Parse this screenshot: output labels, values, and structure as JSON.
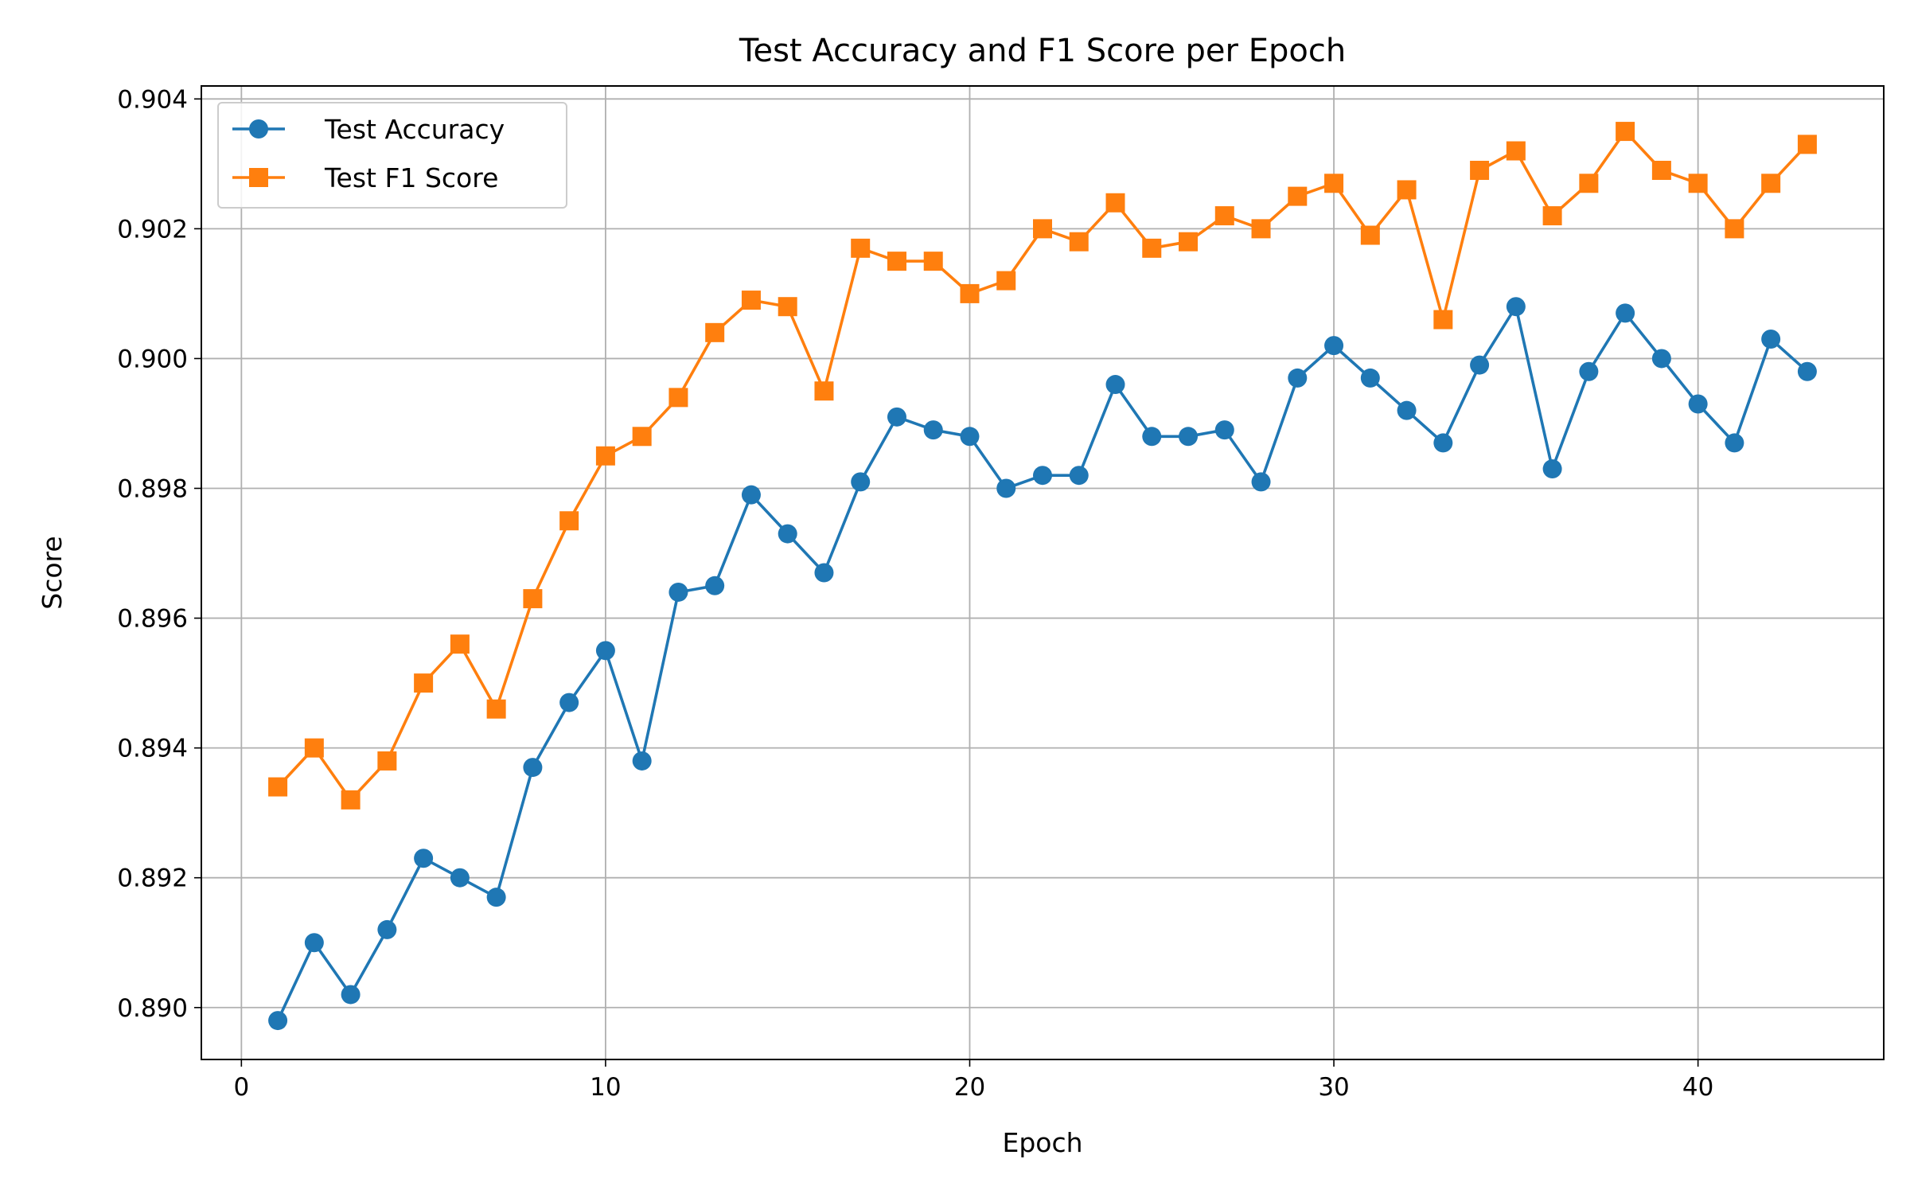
{
  "chart_data": {
    "type": "line",
    "title": "Test Accuracy and F1 Score per Epoch",
    "xlabel": "Epoch",
    "ylabel": "Score",
    "xlim": [
      -1.1,
      45.1
    ],
    "ylim": [
      0.8892,
      0.9042
    ],
    "xticks": [
      0,
      10,
      20,
      30,
      40
    ],
    "xtick_labels": [
      "0",
      "10",
      "20",
      "30",
      "40"
    ],
    "yticks": [
      0.89,
      0.892,
      0.894,
      0.896,
      0.898,
      0.9,
      0.902,
      0.904
    ],
    "ytick_labels": [
      "0.890",
      "0.892",
      "0.894",
      "0.896",
      "0.898",
      "0.900",
      "0.902",
      "0.904"
    ],
    "grid": true,
    "legend": "upper left",
    "x": [
      1,
      2,
      3,
      4,
      5,
      6,
      7,
      8,
      9,
      10,
      11,
      12,
      13,
      14,
      15,
      16,
      17,
      18,
      19,
      20,
      21,
      22,
      23,
      24,
      25,
      26,
      27,
      28,
      29,
      30,
      31,
      32,
      33,
      34,
      35,
      36,
      37,
      38,
      39,
      40,
      41,
      42,
      43
    ],
    "series": [
      {
        "name": "Test Accuracy",
        "color": "#1f77b4",
        "marker": "circle",
        "values": [
          0.8898,
          0.891,
          0.8902,
          0.8912,
          0.8923,
          0.892,
          0.8917,
          0.8937,
          0.8947,
          0.8955,
          0.8938,
          0.8964,
          0.8965,
          0.8979,
          0.8973,
          0.8967,
          0.8981,
          0.8991,
          0.8989,
          0.8988,
          0.898,
          0.8982,
          0.8982,
          0.8996,
          0.8988,
          0.8988,
          0.8989,
          0.8981,
          0.8997,
          0.9002,
          0.8997,
          0.8992,
          0.8987,
          0.8999,
          0.9008,
          0.8983,
          0.8998,
          0.9007,
          0.9,
          0.8993,
          0.8987,
          0.9003,
          0.8998
        ]
      },
      {
        "name": "Test F1 Score",
        "color": "#ff7f0e",
        "marker": "square",
        "values": [
          0.8934,
          0.894,
          0.8932,
          0.8938,
          0.895,
          0.8956,
          0.8946,
          0.8963,
          0.8975,
          0.8985,
          0.8988,
          0.8994,
          0.9004,
          0.9009,
          0.9008,
          0.8995,
          0.9017,
          0.9015,
          0.9015,
          0.901,
          0.9012,
          0.902,
          0.9018,
          0.9024,
          0.9017,
          0.9018,
          0.9022,
          0.902,
          0.9025,
          0.9027,
          0.9019,
          0.9026,
          0.9006,
          0.9029,
          0.9032,
          0.9022,
          0.9027,
          0.9035,
          0.9029,
          0.9027,
          0.902,
          0.9027,
          0.9033
        ]
      }
    ]
  }
}
